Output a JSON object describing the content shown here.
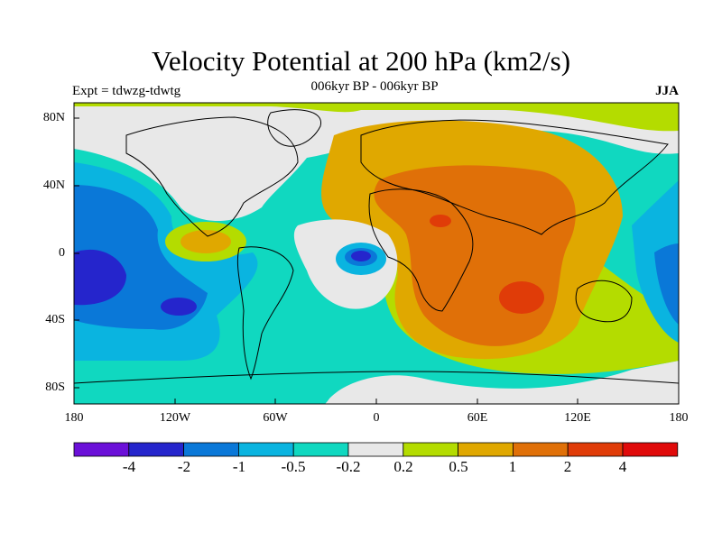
{
  "header": {
    "title": "Velocity Potential at 200 hPa (km2/s)",
    "subtitle": "006kyr BP - 006kyr BP",
    "experiment": "Expt = tdwzg-tdwtg",
    "season": "JJA"
  },
  "axes": {
    "lat_labels": [
      "80N",
      "40N",
      "0",
      "40S",
      "80S"
    ],
    "lon_labels": [
      "180",
      "120W",
      "60W",
      "0",
      "60E",
      "120E",
      "180"
    ]
  },
  "colorbar": {
    "colors": [
      "#6b10d8",
      "#2525cc",
      "#0a78d8",
      "#0ab4e0",
      "#10d8c0",
      "#e8e8e8",
      "#b4dc00",
      "#e0a800",
      "#e07008",
      "#e03c08",
      "#e00a0a"
    ],
    "labels": [
      "-4",
      "-2",
      "-1",
      "-0.5",
      "-0.2",
      "0.2",
      "0.5",
      "1",
      "2",
      "4"
    ]
  }
}
